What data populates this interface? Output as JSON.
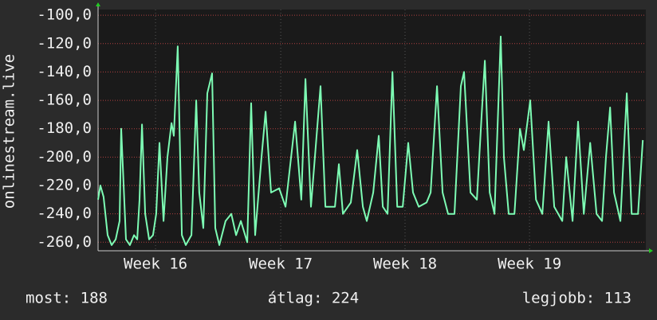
{
  "chart_data": {
    "type": "line",
    "ylabel": "onlinestream.live",
    "color": "#7dfcb4",
    "grid": true,
    "xlim": [
      0,
      30.8
    ],
    "xticks": [
      {
        "value": 3.23,
        "label": "Week 16"
      },
      {
        "value": 10.27,
        "label": "Week 17"
      },
      {
        "value": 17.26,
        "label": "Week 18"
      },
      {
        "value": 24.26,
        "label": "Week 19"
      }
    ],
    "ylim": [
      -266,
      -96
    ],
    "yticks": [
      {
        "value": -100,
        "label": "-100,0"
      },
      {
        "value": -120,
        "label": "-120,0"
      },
      {
        "value": -140,
        "label": "-140,0"
      },
      {
        "value": -160,
        "label": "-160,0"
      },
      {
        "value": -180,
        "label": "-180,0"
      },
      {
        "value": -200,
        "label": "-200,0"
      },
      {
        "value": -220,
        "label": "-220,0"
      },
      {
        "value": -240,
        "label": "-240,0"
      },
      {
        "value": -260,
        "label": "-260,0"
      }
    ],
    "x": [
      0,
      0.13,
      0.31,
      0.54,
      0.76,
      0.99,
      1.21,
      1.3,
      1.57,
      1.79,
      2.02,
      2.2,
      2.33,
      2.47,
      2.65,
      2.87,
      3.09,
      3.27,
      3.45,
      3.68,
      3.9,
      4.13,
      4.26,
      4.48,
      4.71,
      4.93,
      5.25,
      5.52,
      5.69,
      5.92,
      6.14,
      6.41,
      6.59,
      6.82,
      7.17,
      7.49,
      7.76,
      8.03,
      8.39,
      8.61,
      8.83,
      9.19,
      9.42,
      9.73,
      10.18,
      10.54,
      11.08,
      11.43,
      11.66,
      11.97,
      12.51,
      12.78,
      13.32,
      13.54,
      13.77,
      14.21,
      14.57,
      14.89,
      15.11,
      15.47,
      15.78,
      16.01,
      16.28,
      16.55,
      16.82,
      17.13,
      17.44,
      17.71,
      18.03,
      18.47,
      18.7,
      19.06,
      19.37,
      19.68,
      20.04,
      20.4,
      20.58,
      20.94,
      21.3,
      21.57,
      21.75,
      22.02,
      22.29,
      22.64,
      22.82,
      23.09,
      23.41,
      23.72,
      23.94,
      24.3,
      24.62,
      24.98,
      25.33,
      25.65,
      26.1,
      26.32,
      26.68,
      26.99,
      27.31,
      27.67,
      28.03,
      28.34,
      28.56,
      28.79,
      29.01,
      29.37,
      29.73,
      30.0,
      30.36,
      30.63
    ],
    "values": [
      -230,
      -220,
      -228,
      -255,
      -262,
      -258,
      -245,
      -180,
      -258,
      -262,
      -255,
      -258,
      -230,
      -177,
      -240,
      -258,
      -255,
      -240,
      -190,
      -245,
      -200,
      -176,
      -185,
      -122,
      -255,
      -262,
      -255,
      -160,
      -225,
      -250,
      -155,
      -141,
      -250,
      -262,
      -245,
      -240,
      -255,
      -245,
      -260,
      -162,
      -255,
      -200,
      -168,
      -225,
      -222,
      -235,
      -175,
      -230,
      -145,
      -235,
      -150,
      -235,
      -235,
      -205,
      -240,
      -232,
      -195,
      -235,
      -245,
      -225,
      -185,
      -235,
      -240,
      -140,
      -235,
      -235,
      -190,
      -225,
      -235,
      -232,
      -225,
      -150,
      -225,
      -240,
      -240,
      -150,
      -140,
      -225,
      -230,
      -170,
      -132,
      -225,
      -240,
      -115,
      -200,
      -240,
      -240,
      -180,
      -195,
      -160,
      -230,
      -240,
      -175,
      -235,
      -245,
      -200,
      -245,
      -175,
      -240,
      -190,
      -240,
      -245,
      -200,
      -165,
      -225,
      -245,
      -155,
      -240,
      -240,
      -188
    ],
    "stats": [
      "most: 188",
      "átlag: 224",
      "legjobb: 113"
    ]
  }
}
